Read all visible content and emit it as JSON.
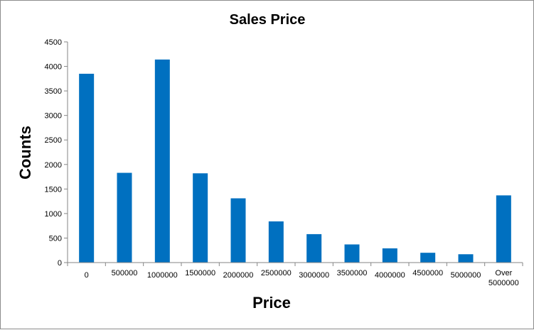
{
  "chart_data": {
    "type": "bar",
    "title": "Sales Price",
    "xlabel": "Price",
    "ylabel": "Counts",
    "ylim": [
      0,
      4500
    ],
    "yticks": [
      0,
      500,
      1000,
      1500,
      2000,
      2500,
      3000,
      3500,
      4000,
      4500
    ],
    "categories": [
      [
        "0"
      ],
      [
        "500000"
      ],
      [
        "1000000"
      ],
      [
        "1500000"
      ],
      [
        "2000000"
      ],
      [
        "2500000"
      ],
      [
        "3000000"
      ],
      [
        "3500000"
      ],
      [
        "4000000"
      ],
      [
        "4500000"
      ],
      [
        "5000000"
      ],
      [
        "Over",
        "5000000"
      ]
    ],
    "values": [
      3850,
      1830,
      4140,
      1820,
      1310,
      840,
      580,
      370,
      290,
      200,
      170,
      1370
    ],
    "bar_color": "#0070C0",
    "grid": false,
    "legend": "none"
  }
}
